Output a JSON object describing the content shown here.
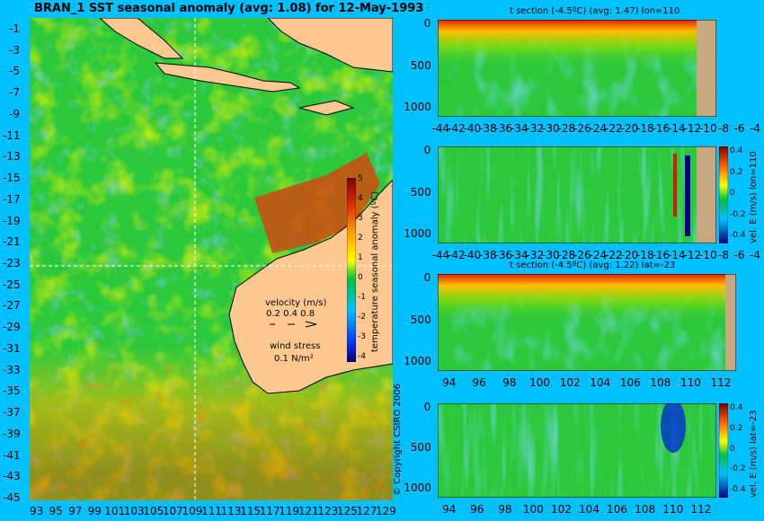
{
  "main_title": "BRAN_1 SST seasonal anomaly (avg: 1.08) for 12-May-1993",
  "map": {
    "lat_ticks": [
      "-1",
      "-3",
      "-5",
      "-7",
      "-9",
      "-11",
      "-13",
      "-15",
      "-17",
      "-19",
      "-21",
      "-23",
      "-25",
      "-27",
      "-29",
      "-31",
      "-33",
      "-35",
      "-37",
      "-39",
      "-41",
      "-43",
      "-45"
    ],
    "lon_ticks": [
      "93",
      "95",
      "97",
      "99",
      "101",
      "103",
      "105",
      "107",
      "109",
      "111",
      "113",
      "115",
      "117",
      "119",
      "121",
      "123",
      "125",
      "127",
      "129"
    ],
    "colorbar_ticks": [
      "5",
      "4",
      "3",
      "2",
      "1",
      "0",
      "-1",
      "-2",
      "-3",
      "-4"
    ],
    "colorbar_label": "temperature seasonal anomaly (ºC)",
    "velocity_title": "velocity (m/s)",
    "velocity_scale": "0.2 0.4 0.8",
    "wind_title": "wind stress",
    "wind_scale": "0.1 N/m²",
    "copyright": "© Copyright CSIRO 2006"
  },
  "panels": [
    {
      "title": "t section (-4.5ºC) (avg: 1.47) lon=110",
      "x_ticks": [
        "-44",
        "-42",
        "-40",
        "-38",
        "-36",
        "-34",
        "-32",
        "-30",
        "-28",
        "-26",
        "-24",
        "-22",
        "-20",
        "-18",
        "-16",
        "-14",
        "-12",
        "-10",
        "-8",
        "-6",
        "-4"
      ],
      "y_ticks": [
        "0",
        "500",
        "1000"
      ],
      "has_colorbar": false
    },
    {
      "title": "",
      "x_ticks": [
        "-44",
        "-42",
        "-40",
        "-38",
        "-36",
        "-34",
        "-32",
        "-30",
        "-28",
        "-26",
        "-24",
        "-22",
        "-20",
        "-18",
        "-16",
        "-14",
        "-12",
        "-10",
        "-8",
        "-6",
        "-4"
      ],
      "y_ticks": [
        "0",
        "500",
        "1000"
      ],
      "has_colorbar": true,
      "cb_ticks": [
        "0.4",
        "0.2",
        "0",
        "-0.2",
        "-0.4"
      ],
      "cb_label": "vel. E (m/s) lon=110"
    },
    {
      "title": "t section (-4.5ºC) (avg: 1.22) lat=-23",
      "x_ticks": [
        "94",
        "96",
        "98",
        "100",
        "102",
        "104",
        "106",
        "108",
        "110",
        "112"
      ],
      "y_ticks": [
        "0",
        "500",
        "1000"
      ],
      "has_colorbar": false
    },
    {
      "title": "",
      "x_ticks": [
        "94",
        "96",
        "98",
        "100",
        "102",
        "104",
        "106",
        "108",
        "110",
        "112"
      ],
      "y_ticks": [
        "0",
        "500",
        "1000"
      ],
      "has_colorbar": true,
      "cb_ticks": [
        "0.4",
        "0.2",
        "0",
        "-0.2",
        "-0.4"
      ],
      "cb_label": "vel. E (m/s) lat=-23"
    }
  ]
}
